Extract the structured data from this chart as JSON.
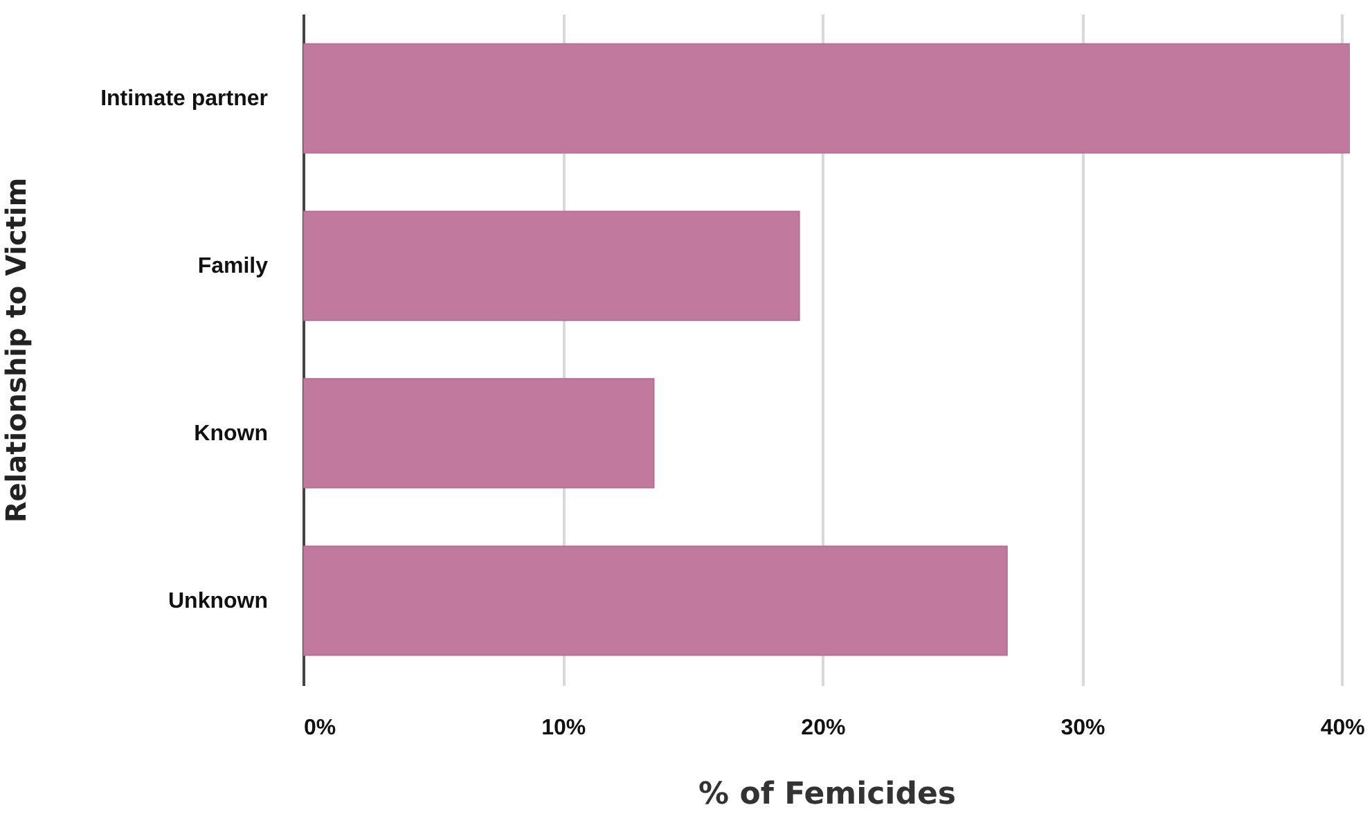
{
  "chart_data": {
    "type": "bar",
    "orientation": "horizontal",
    "xlabel": "% of Femicides",
    "ylabel": "Relationship to Victim",
    "categories": [
      "Intimate partner",
      "Family",
      "Known",
      "Unknown"
    ],
    "values": [
      40.3,
      19.1,
      13.5,
      27.1
    ],
    "color": "#c17a9e",
    "xlim": [
      0,
      40.3
    ],
    "xticks": [
      {
        "value": 0,
        "label": "0%"
      },
      {
        "value": 10,
        "label": "10%"
      },
      {
        "value": 20,
        "label": "20%"
      },
      {
        "value": 30,
        "label": "30%"
      },
      {
        "value": 40,
        "label": "40%"
      }
    ],
    "grid": "x"
  }
}
